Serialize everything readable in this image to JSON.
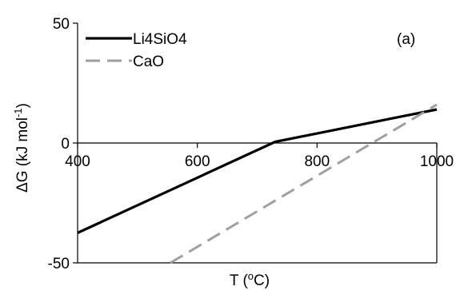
{
  "chart_data": {
    "type": "line",
    "panel_label": "(a)",
    "xlabel": "T (",
    "xlabel_sup": "o",
    "xlabel_end": "C)",
    "ylabel": "ΔG (kJ mol",
    "ylabel_sup": "-1",
    "ylabel_end": ")",
    "xlim": [
      400,
      1000
    ],
    "ylim": [
      -50,
      50
    ],
    "x_ticks": [
      400,
      600,
      800,
      1000
    ],
    "y_ticks": [
      50,
      0,
      -50
    ],
    "x_tick_labels": [
      "400",
      "600",
      "800",
      "1000"
    ],
    "y_tick_labels": [
      "50",
      "0",
      "-50"
    ],
    "grid": false,
    "legend_position": "top-left",
    "series": [
      {
        "name": "Li4SiO4",
        "color": "#000000",
        "style": "solid",
        "x": [
          400,
          730,
          1000
        ],
        "y": [
          -37.5,
          0.5,
          14
        ]
      },
      {
        "name": "CaO",
        "color": "#a0a0a0",
        "style": "dashed",
        "x": [
          555,
          1000
        ],
        "y": [
          -50,
          16
        ]
      }
    ]
  }
}
